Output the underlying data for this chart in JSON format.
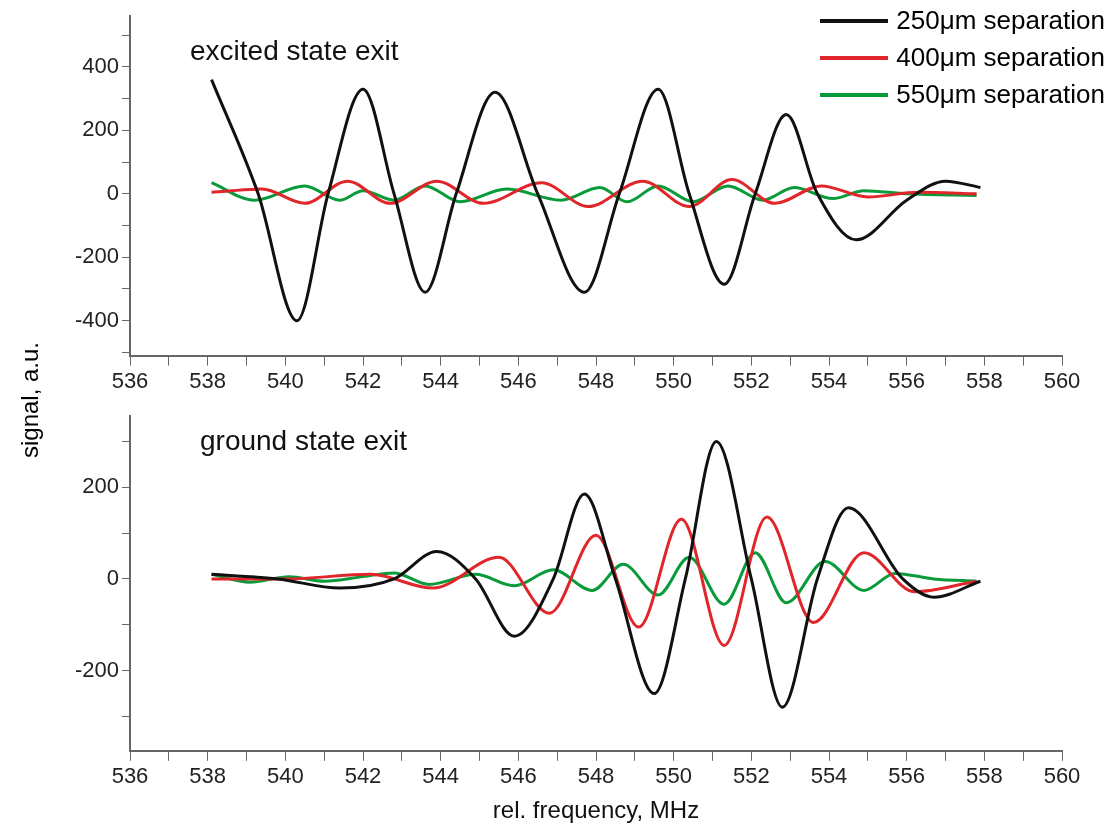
{
  "chart_data": [
    {
      "type": "line",
      "title": "excited state exit",
      "ylabel": "signal, a.u.",
      "legend": "top right",
      "marker": "none",
      "line_style": "solid",
      "grid": false,
      "xlim": [
        536,
        560
      ],
      "xticks": [
        536,
        {
          "value": 537,
          "label": null
        },
        538,
        {
          "value": 539,
          "label": null
        },
        540,
        {
          "value": 541,
          "label": null
        },
        542,
        {
          "value": 543,
          "label": null
        },
        544,
        {
          "value": 545,
          "label": null
        },
        546,
        {
          "value": 547,
          "label": null
        },
        548,
        {
          "value": 549,
          "label": null
        },
        550,
        {
          "value": 551,
          "label": null
        },
        552,
        {
          "value": 553,
          "label": null
        },
        554,
        {
          "value": 555,
          "label": null
        },
        556,
        {
          "value": 557,
          "label": null
        },
        558,
        {
          "value": 559,
          "label": null
        },
        560
      ],
      "ylim": [
        -510,
        560
      ],
      "yticks": [
        {
          "value": -500,
          "label": null
        },
        -400,
        {
          "value": -300,
          "label": null
        },
        -200,
        {
          "value": -100,
          "label": null
        },
        0,
        {
          "value": 100,
          "label": null
        },
        200,
        {
          "value": 300,
          "label": null
        },
        400,
        {
          "value": 500,
          "label": null
        }
      ],
      "series": [
        {
          "name": "250μm separation",
          "color": "#111111",
          "x": [
            538.1,
            539.3,
            540.3,
            541.1,
            542.0,
            542.8,
            543.6,
            544.4,
            545.4,
            546.5,
            547.7,
            548.6,
            549.6,
            550.4,
            551.3,
            552.1,
            552.9,
            553.7,
            554.7,
            556.0,
            557.0,
            557.9
          ],
          "values": [
            360,
            0,
            -400,
            0,
            330,
            0,
            -310,
            0,
            320,
            0,
            -310,
            0,
            330,
            0,
            -285,
            0,
            250,
            0,
            -145,
            -20,
            40,
            20
          ]
        },
        {
          "name": "400μm separation",
          "color": "#e0262a",
          "x": [
            538.1,
            539.4,
            540.5,
            541.6,
            542.7,
            543.9,
            545.1,
            546.6,
            547.8,
            549.2,
            550.4,
            551.5,
            552.6,
            553.8,
            555.0,
            556.3,
            557.8
          ],
          "values": [
            5,
            15,
            -30,
            40,
            -30,
            40,
            -30,
            35,
            -40,
            40,
            -40,
            45,
            -30,
            25,
            -10,
            5,
            0
          ]
        },
        {
          "name": "550μm separation",
          "color": "#0a9a3a",
          "x": [
            538.1,
            539.2,
            540.5,
            541.4,
            542.0,
            542.8,
            543.6,
            544.5,
            545.7,
            547.1,
            548.1,
            548.8,
            549.6,
            550.5,
            551.4,
            552.3,
            553.1,
            554.1,
            554.9,
            556.0,
            557.8
          ],
          "values": [
            35,
            -20,
            25,
            -20,
            10,
            -20,
            25,
            -25,
            15,
            -20,
            20,
            -25,
            25,
            -25,
            25,
            -20,
            20,
            -15,
            10,
            0,
            -5
          ]
        }
      ]
    },
    {
      "type": "line",
      "title": "ground state exit",
      "xlabel": "rel. frequency, MHz",
      "legend": false,
      "marker": "none",
      "line_style": "solid",
      "grid": false,
      "xlim": [
        536,
        560
      ],
      "xticks": [
        536,
        {
          "value": 537,
          "label": null
        },
        538,
        {
          "value": 539,
          "label": null
        },
        540,
        {
          "value": 541,
          "label": null
        },
        542,
        {
          "value": 543,
          "label": null
        },
        544,
        {
          "value": 545,
          "label": null
        },
        546,
        {
          "value": 547,
          "label": null
        },
        548,
        {
          "value": 549,
          "label": null
        },
        550,
        {
          "value": 551,
          "label": null
        },
        552,
        {
          "value": 553,
          "label": null
        },
        554,
        {
          "value": 555,
          "label": null
        },
        556,
        {
          "value": 557,
          "label": null
        },
        558,
        {
          "value": 559,
          "label": null
        },
        560
      ],
      "ylim": [
        -375,
        355
      ],
      "yticks": [
        {
          "value": -300,
          "label": null
        },
        -200,
        {
          "value": -100,
          "label": null
        },
        0,
        {
          "value": 100,
          "label": null
        },
        200,
        {
          "value": 300,
          "label": null
        }
      ],
      "series": [
        {
          "color": "#111111",
          "x": [
            538.1,
            539.8,
            541.4,
            542.8,
            543.9,
            544.9,
            545.9,
            546.9,
            547.7,
            548.5,
            549.5,
            550.3,
            551.1,
            552.0,
            552.8,
            553.7,
            554.5,
            555.9,
            556.7,
            557.9
          ],
          "values": [
            10,
            0,
            -20,
            0,
            60,
            0,
            -125,
            0,
            185,
            0,
            -250,
            0,
            300,
            0,
            -280,
            0,
            155,
            0,
            -40,
            -5
          ]
        },
        {
          "color": "#e0262a",
          "x": [
            538.1,
            540.0,
            542.2,
            543.8,
            545.5,
            546.8,
            548.0,
            549.1,
            550.2,
            551.3,
            552.4,
            553.6,
            554.9,
            556.2,
            557.8
          ],
          "values": [
            0,
            0,
            10,
            -20,
            47,
            -75,
            95,
            -105,
            130,
            -145,
            135,
            -95,
            57,
            -28,
            -5
          ]
        },
        {
          "color": "#0a9a3a",
          "x": [
            538.1,
            539.1,
            540.1,
            541.0,
            542.0,
            542.8,
            543.7,
            544.9,
            545.9,
            546.9,
            547.9,
            548.7,
            549.6,
            550.4,
            551.3,
            552.1,
            552.9,
            553.9,
            554.9,
            555.7,
            556.7,
            557.8
          ],
          "values": [
            10,
            -7,
            5,
            -5,
            5,
            13,
            -12,
            10,
            -15,
            20,
            -25,
            32,
            -35,
            47,
            -55,
            57,
            -52,
            38,
            -25,
            12,
            0,
            -5
          ]
        }
      ]
    }
  ]
}
